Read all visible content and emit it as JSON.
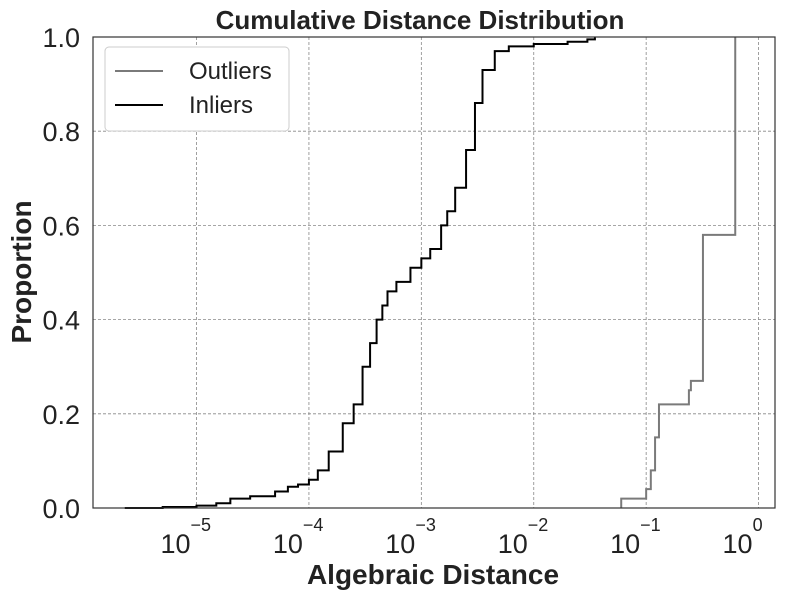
{
  "chart_data": {
    "type": "line",
    "title": "Cumulative Distance Distribution",
    "xlabel": "Algebraic Distance",
    "ylabel": "Proportion",
    "xscale": "log",
    "xlim": [
      1.2e-06,
      1.4
    ],
    "ylim": [
      0,
      1
    ],
    "grid": true,
    "legend_position": "top-left",
    "x_ticks": [
      {
        "base": "10",
        "exp": "−5",
        "value": 1e-05
      },
      {
        "base": "10",
        "exp": "−4",
        "value": 0.0001
      },
      {
        "base": "10",
        "exp": "−3",
        "value": 0.001
      },
      {
        "base": "10",
        "exp": "−2",
        "value": 0.01
      },
      {
        "base": "10",
        "exp": "−1",
        "value": 0.1
      },
      {
        "base": "10",
        "exp": "0",
        "value": 1
      }
    ],
    "y_ticks": [
      {
        "label": "0.0",
        "value": 0.0
      },
      {
        "label": "0.2",
        "value": 0.2
      },
      {
        "label": "0.4",
        "value": 0.4
      },
      {
        "label": "0.6",
        "value": 0.6
      },
      {
        "label": "0.8",
        "value": 0.8
      },
      {
        "label": "1.0",
        "value": 1.0
      }
    ],
    "series": [
      {
        "name": "Outliers",
        "color": "#7a7a7a",
        "step": true,
        "points": [
          [
            0.06,
            0.0
          ],
          [
            0.06,
            0.02
          ],
          [
            0.1,
            0.02
          ],
          [
            0.1,
            0.04
          ],
          [
            0.11,
            0.04
          ],
          [
            0.11,
            0.08
          ],
          [
            0.12,
            0.08
          ],
          [
            0.12,
            0.15
          ],
          [
            0.13,
            0.15
          ],
          [
            0.13,
            0.22
          ],
          [
            0.24,
            0.22
          ],
          [
            0.24,
            0.25
          ],
          [
            0.25,
            0.25
          ],
          [
            0.25,
            0.27
          ],
          [
            0.32,
            0.27
          ],
          [
            0.32,
            0.58
          ],
          [
            0.62,
            0.58
          ],
          [
            0.62,
            1.0
          ]
        ]
      },
      {
        "name": "Inliers",
        "color": "#000000",
        "step": false,
        "points": [
          [
            2.3e-06,
            0.0
          ],
          [
            5e-06,
            0.002
          ],
          [
            1e-05,
            0.005
          ],
          [
            1.5e-05,
            0.01
          ],
          [
            2e-05,
            0.02
          ],
          [
            3e-05,
            0.025
          ],
          [
            5e-05,
            0.035
          ],
          [
            6.5e-05,
            0.045
          ],
          [
            8e-05,
            0.05
          ],
          [
            0.0001,
            0.06
          ],
          [
            0.00012,
            0.08
          ],
          [
            0.00015,
            0.12
          ],
          [
            0.0002,
            0.18
          ],
          [
            0.00025,
            0.22
          ],
          [
            0.0003,
            0.3
          ],
          [
            0.00035,
            0.35
          ],
          [
            0.0004,
            0.4
          ],
          [
            0.00045,
            0.43
          ],
          [
            0.0005,
            0.46
          ],
          [
            0.0006,
            0.48
          ],
          [
            0.0008,
            0.51
          ],
          [
            0.001,
            0.53
          ],
          [
            0.0012,
            0.55
          ],
          [
            0.0015,
            0.6
          ],
          [
            0.0017,
            0.63
          ],
          [
            0.002,
            0.68
          ],
          [
            0.0025,
            0.76
          ],
          [
            0.003,
            0.86
          ],
          [
            0.0035,
            0.93
          ],
          [
            0.0045,
            0.97
          ],
          [
            0.006,
            0.98
          ],
          [
            0.01,
            0.985
          ],
          [
            0.02,
            0.99
          ],
          [
            0.03,
            0.995
          ],
          [
            0.035,
            1.0
          ]
        ]
      }
    ]
  }
}
